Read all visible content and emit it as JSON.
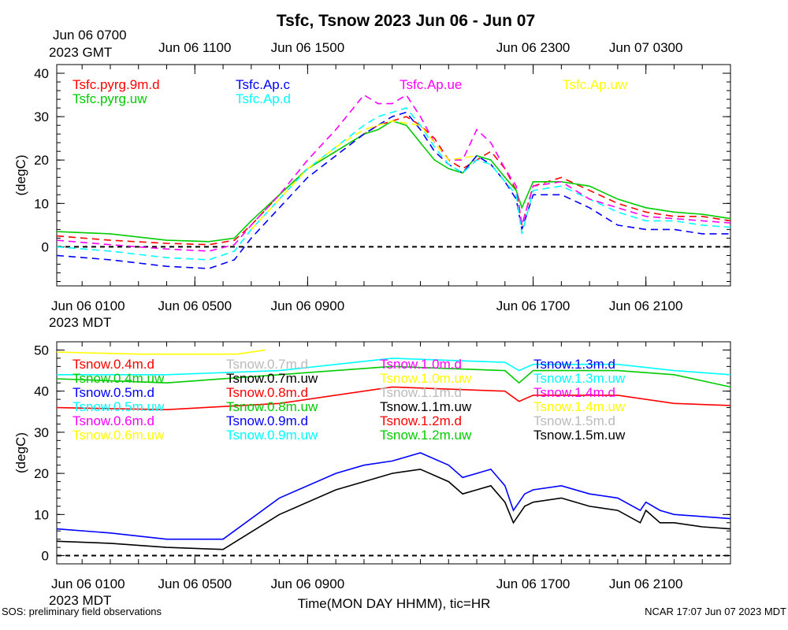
{
  "title": "Tsfc, Tsnow 2023 Jun 06 - Jun 07",
  "footer": {
    "left": "SOS: preliminary field observations",
    "right": "NCAR 17:07 Jun 07 2023 MDT"
  },
  "chart_data": [
    {
      "type": "line",
      "x_unit": "hours since Jun 06 0000 MDT",
      "xlim": [
        0.1,
        24.0
      ],
      "ylim": [
        -9,
        42
      ],
      "ylabel": "(degC)",
      "yticks": [
        0,
        10,
        20,
        30,
        40
      ],
      "top_axis": {
        "tz_line1": "Jun 06 0700",
        "tz_line2": "2023 GMT",
        "ticks": [
          {
            "x": 5,
            "label": "Jun 06 1100"
          },
          {
            "x": 9,
            "label": "Jun 06 1500"
          },
          {
            "x": 17,
            "label": "Jun 06 2300"
          },
          {
            "x": 21,
            "label": "Jun 07 0300"
          }
        ]
      },
      "bottom_axis": {
        "tz_line1": "Jun 06 0100",
        "tz_line2": "2023 MDT",
        "ticks": [
          {
            "x": 5,
            "label": "Jun 06 0500"
          },
          {
            "x": 9,
            "label": "Jun 06 0900"
          },
          {
            "x": 17,
            "label": "Jun 06 1700"
          },
          {
            "x": 21,
            "label": "Jun 06 2100"
          }
        ]
      },
      "reference_line": 0,
      "series": [
        {
          "name": "Tsfc.pyrg.9m.d",
          "color": "#ff0000",
          "dash": true,
          "x": [
            0.1,
            2,
            4,
            5.5,
            6.4,
            7,
            8,
            9,
            10,
            11,
            11.5,
            12,
            12.5,
            13,
            13.5,
            14,
            14.5,
            15,
            15.5,
            16,
            16.4,
            16.6,
            17,
            18,
            19,
            20,
            21,
            22,
            23,
            24.0
          ],
          "y": [
            2.5,
            1.5,
            0.8,
            0.5,
            1.5,
            5,
            12,
            18,
            22,
            26,
            28,
            29,
            30,
            28,
            25,
            20,
            18,
            20,
            22,
            18,
            13,
            5,
            14,
            16,
            13,
            10,
            8,
            7,
            7,
            6
          ]
        },
        {
          "name": "Tsfc.pyrg.uw",
          "color": "#00cc00",
          "dash": false,
          "x": [
            0.1,
            2,
            4,
            5.5,
            6.4,
            7,
            8,
            9,
            10,
            11,
            11.5,
            12,
            12.5,
            13,
            13.5,
            14,
            14.5,
            15,
            15.5,
            16,
            16.4,
            16.6,
            17,
            18,
            19,
            20,
            21,
            22,
            23,
            24.0
          ],
          "y": [
            3.5,
            3,
            1.5,
            1.2,
            2,
            6,
            12,
            18,
            22,
            26,
            27,
            29,
            28,
            24,
            20,
            18,
            17,
            21,
            20,
            16,
            13,
            9,
            15,
            15,
            14,
            11,
            9,
            8,
            7.5,
            6.5
          ]
        },
        {
          "name": "Tsfc.Ap.c",
          "color": "#0000ff",
          "dash": true,
          "x": [
            0.1,
            2,
            4,
            5.5,
            6.4,
            7,
            8,
            9,
            10,
            11,
            11.5,
            12,
            12.5,
            13,
            13.5,
            14,
            14.5,
            15,
            15.5,
            16,
            16.4,
            16.6,
            17,
            18,
            19,
            20,
            21,
            22,
            23,
            24.0
          ],
          "y": [
            -2,
            -3,
            -4.5,
            -5,
            -3,
            2,
            9,
            16,
            21,
            26,
            28,
            30,
            31,
            27,
            22,
            19,
            17,
            21,
            19,
            15,
            11,
            4,
            12,
            12,
            9,
            5,
            4,
            4,
            3,
            3
          ]
        },
        {
          "name": "Tsfc.Ap.d",
          "color": "#00ffff",
          "dash": true,
          "x": [
            0.1,
            2,
            4,
            5.5,
            6.4,
            7,
            8,
            9,
            10,
            11,
            11.5,
            12,
            12.5,
            13,
            13.5,
            14,
            14.5,
            15,
            15.5,
            16,
            16.4,
            16.6,
            17,
            18,
            19,
            20,
            21,
            22,
            23,
            24.0
          ],
          "y": [
            0,
            -1,
            -2.5,
            -3,
            -1,
            4,
            11,
            18,
            23,
            28,
            30,
            31,
            32,
            28,
            23,
            19,
            17,
            20,
            19,
            15,
            12,
            3,
            13,
            14,
            11,
            8,
            6,
            6,
            5,
            4.5
          ]
        },
        {
          "name": "Tsfc.Ap.ue",
          "color": "#ff00ff",
          "dash": true,
          "x": [
            0.1,
            2,
            4,
            5.5,
            6.4,
            7,
            8,
            9,
            10,
            11,
            11.5,
            12,
            12.5,
            13,
            13.5,
            14,
            14.5,
            15,
            15.5,
            16,
            16.4,
            16.6,
            17,
            18,
            19,
            20,
            21,
            22,
            23,
            24.0
          ],
          "y": [
            1.5,
            0.5,
            -0.5,
            -1,
            0.5,
            5,
            12,
            20,
            27,
            35,
            33,
            33,
            35,
            30,
            24,
            20,
            20,
            27,
            24,
            18,
            14,
            5,
            14,
            15,
            11,
            9,
            7,
            6.5,
            6,
            5.5
          ]
        },
        {
          "name": "Tsfc.Ap.uw",
          "color": "#ffff00",
          "dash": true,
          "x": [
            7,
            8,
            9,
            10,
            11,
            12,
            13,
            14,
            15
          ],
          "y": [
            4,
            11,
            18,
            23,
            27,
            29,
            28,
            20,
            21
          ]
        }
      ]
    },
    {
      "type": "line",
      "x_unit": "hours since Jun 06 0000 MDT",
      "xlim": [
        0.1,
        24.0
      ],
      "ylim": [
        -2,
        52
      ],
      "ylabel": "(degC)",
      "yticks": [
        0,
        10,
        20,
        30,
        40,
        50
      ],
      "xlabel": "Time(MON DAY HHMM), tic=HR",
      "bottom_axis": {
        "tz_line1": "Jun 06 0100",
        "tz_line2": "2023 MDT",
        "ticks": [
          {
            "x": 5,
            "label": "Jun 06 0500"
          },
          {
            "x": 9,
            "label": "Jun 06 0900"
          },
          {
            "x": 17,
            "label": "Jun 06 1700"
          },
          {
            "x": 21,
            "label": "Jun 06 2100"
          }
        ]
      },
      "reference_line": 0,
      "series": [
        {
          "name": "Tsnow.0.4m.d",
          "color": "#ff0000"
        },
        {
          "name": "Tsnow.0.4m.uw",
          "color": "#00cc00",
          "x": [
            0.1,
            4,
            8,
            12,
            16,
            16.5,
            17,
            20,
            22,
            24.0
          ],
          "y": [
            43,
            42,
            44,
            46,
            45,
            42,
            45,
            45,
            44,
            41
          ]
        },
        {
          "name": "Tsnow.0.5m.d",
          "color": "#0000ff"
        },
        {
          "name": "Tsnow.0.5m.uw",
          "color": "#00ffff"
        },
        {
          "name": "Tsnow.0.6m.d",
          "color": "#ff00ff"
        },
        {
          "name": "Tsnow.0.6m.uw",
          "color": "#ffff00",
          "x": [
            0.1,
            3,
            6.5,
            7.5
          ],
          "y": [
            49.5,
            49,
            49,
            50
          ]
        },
        {
          "name": "Tsnow.0.7m.d",
          "color": "#bbbbbb"
        },
        {
          "name": "Tsnow.0.7m.uw",
          "color": "#000000",
          "x": [
            0.1,
            2,
            4,
            6,
            8,
            10,
            11,
            12,
            13,
            14,
            14.5,
            15,
            15.5,
            16,
            16.3,
            16.5,
            16.7,
            17,
            18,
            19,
            20,
            20.8,
            21,
            21.5,
            22,
            23,
            24.0
          ],
          "y": [
            3.5,
            3,
            2,
            1.5,
            10,
            16,
            18,
            20,
            21,
            18,
            15,
            16,
            17,
            13,
            8,
            10,
            12,
            13,
            14,
            12,
            11,
            8,
            11,
            8,
            8,
            7,
            6.5
          ]
        },
        {
          "name": "Tsnow.0.8m.d",
          "color": "#ff0000",
          "x": [
            0.1,
            4,
            8,
            12,
            16,
            16.5,
            17,
            20,
            22,
            24.0
          ],
          "y": [
            36,
            35.5,
            37,
            41,
            40,
            37.5,
            39,
            39,
            37,
            36.5
          ]
        },
        {
          "name": "Tsnow.0.8m.uw",
          "color": "#00cc00"
        },
        {
          "name": "Tsnow.0.9m.d",
          "color": "#0000ff",
          "x": [
            0.1,
            2,
            4,
            6,
            8,
            10,
            11,
            12,
            13,
            14,
            14.5,
            15,
            15.5,
            16,
            16.3,
            16.5,
            16.7,
            17,
            18,
            19,
            20,
            20.8,
            21,
            21.5,
            22,
            23,
            24.0
          ],
          "y": [
            6.5,
            5.5,
            4,
            4,
            14,
            20,
            22,
            23,
            25,
            22,
            19,
            20,
            21,
            17,
            11,
            13,
            15,
            16,
            17,
            15,
            14,
            11,
            13,
            11,
            10,
            9.5,
            9
          ]
        },
        {
          "name": "Tsnow.0.9m.uw",
          "color": "#00ffff",
          "x": [
            0.1,
            4,
            8,
            12,
            16,
            16.5,
            17,
            20,
            22,
            24.0
          ],
          "y": [
            44,
            44,
            45,
            48,
            47,
            45,
            46.5,
            46.5,
            45,
            44
          ]
        },
        {
          "name": "Tsnow.1.0m.d",
          "color": "#ff00ff"
        },
        {
          "name": "Tsnow.1.0m.uw",
          "color": "#ffff00"
        },
        {
          "name": "Tsnow.1.1m.d",
          "color": "#bbbbbb"
        },
        {
          "name": "Tsnow.1.1m.uw",
          "color": "#000000"
        },
        {
          "name": "Tsnow.1.2m.d",
          "color": "#ff0000"
        },
        {
          "name": "Tsnow.1.2m.uw",
          "color": "#00cc00"
        },
        {
          "name": "Tsnow.1.3m.d",
          "color": "#0000ff"
        },
        {
          "name": "Tsnow.1.3m.uw",
          "color": "#00ffff"
        },
        {
          "name": "Tsnow.1.4m.d",
          "color": "#ff00ff"
        },
        {
          "name": "Tsnow.1.4m.uw",
          "color": "#ffff00"
        },
        {
          "name": "Tsnow.1.5m.d",
          "color": "#bbbbbb"
        },
        {
          "name": "Tsnow.1.5m.uw",
          "color": "#000000"
        }
      ]
    }
  ]
}
